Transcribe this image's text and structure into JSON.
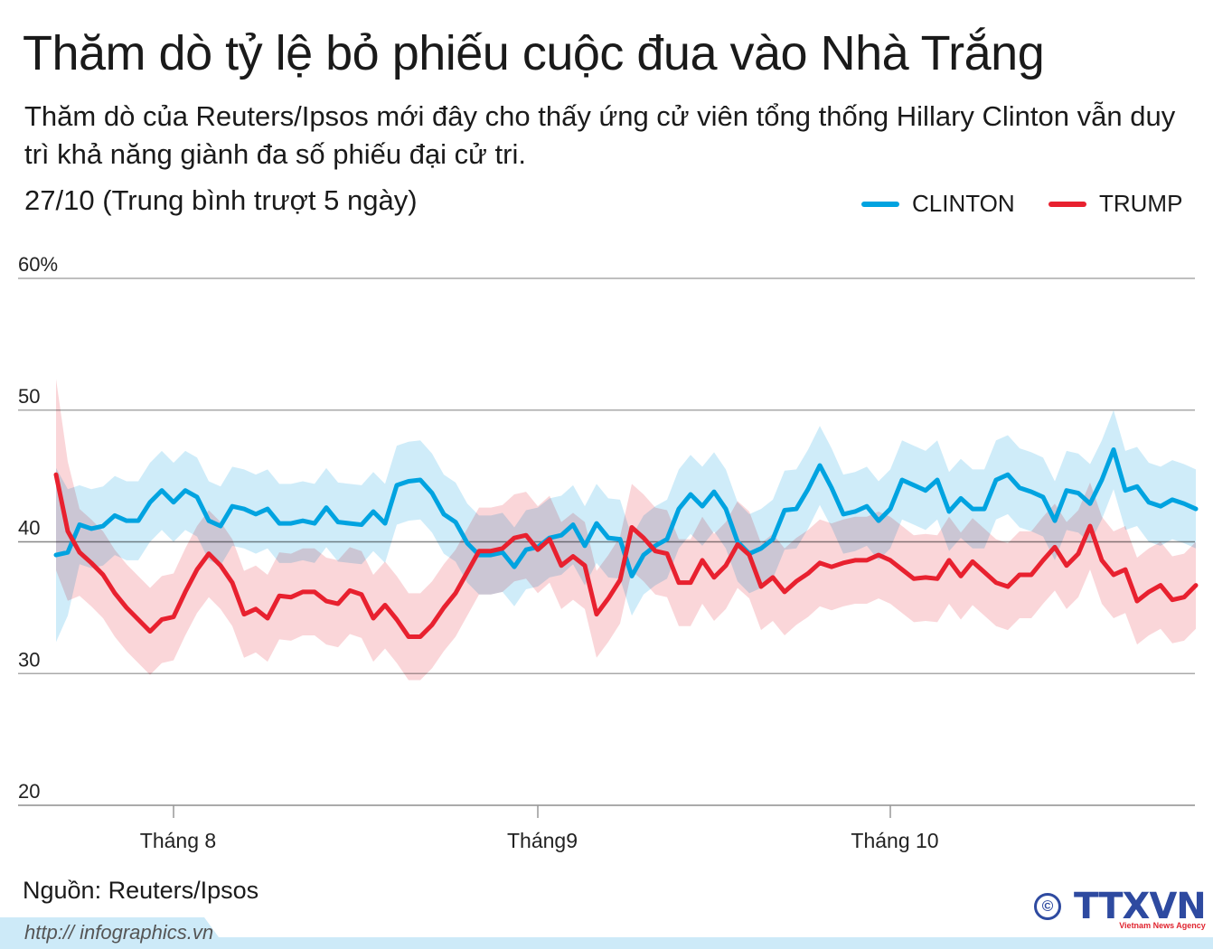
{
  "header": {
    "title": "Thăm dò tỷ lệ bỏ phiếu cuộc đua vào Nhà Trắng",
    "subtitle": "Thăm dò của Reuters/Ipsos mới đây cho thấy ứng cử viên tổng thống Hillary Clinton vẫn duy trì khả năng giành đa số phiếu đại cử tri.",
    "date_note": "27/10 (Trung bình trượt 5 ngày)"
  },
  "chart_data": {
    "type": "line",
    "title": "Thăm dò tỷ lệ bỏ phiếu cuộc đua vào Nhà Trắng",
    "xlabel": "",
    "ylabel": "",
    "ylim": [
      20,
      60
    ],
    "y_ticks": [
      {
        "value": 60,
        "label": "60%"
      },
      {
        "value": 50,
        "label": "50"
      },
      {
        "value": 40,
        "label": "40"
      },
      {
        "value": 30,
        "label": "30"
      },
      {
        "value": 20,
        "label": "20"
      }
    ],
    "x_ticks": [
      {
        "index": 10,
        "label": "Tháng 8"
      },
      {
        "index": 41,
        "label": "Tháng9"
      },
      {
        "index": 71,
        "label": "Tháng 10"
      }
    ],
    "grid": true,
    "legend_position": "top-right",
    "series": [
      {
        "name": "CLINTON",
        "color": "#00a3e0",
        "band_color": "#bfe6f7",
        "band_margin": 3.0,
        "values": [
          39.0,
          39.2,
          41.3,
          41.0,
          41.2,
          42.0,
          41.6,
          41.6,
          43.0,
          43.9,
          43.0,
          43.9,
          43.4,
          41.6,
          41.2,
          42.7,
          42.5,
          42.1,
          42.5,
          41.4,
          41.4,
          41.6,
          41.4,
          42.6,
          41.5,
          41.4,
          41.3,
          42.3,
          41.4,
          44.3,
          44.6,
          44.7,
          43.7,
          42.1,
          41.5,
          39.9,
          39.0,
          39.0,
          39.2,
          38.1,
          39.4,
          39.6,
          40.3,
          40.5,
          41.3,
          39.7,
          41.4,
          40.3,
          40.2,
          37.4,
          39.0,
          39.7,
          40.2,
          42.5,
          43.6,
          42.7,
          43.8,
          42.5,
          40.0,
          39.1,
          39.5,
          40.2,
          42.4,
          42.5,
          44.0,
          45.8,
          44.1,
          42.1,
          42.3,
          42.7,
          41.6,
          42.5,
          44.7,
          44.3,
          43.9,
          44.7,
          42.3,
          43.3,
          42.5,
          42.5,
          44.7,
          45.1,
          44.1,
          43.8,
          43.4,
          41.6,
          43.9,
          43.7,
          42.9,
          44.7,
          47.0,
          43.9,
          44.2,
          43.0,
          42.7,
          43.2,
          42.9,
          42.5
        ]
      },
      {
        "name": "TRUMP",
        "color": "#e8212f",
        "band_color": "#f8c9cd",
        "band_margin": 3.3,
        "values": [
          45.1,
          40.8,
          39.2,
          38.4,
          37.5,
          36.1,
          35.0,
          34.1,
          33.2,
          34.1,
          34.3,
          36.2,
          37.9,
          39.1,
          38.2,
          36.9,
          34.5,
          34.9,
          34.2,
          35.9,
          35.8,
          36.2,
          36.2,
          35.5,
          35.3,
          36.3,
          36.0,
          34.2,
          35.2,
          34.1,
          32.8,
          32.8,
          33.7,
          35.0,
          36.1,
          37.7,
          39.3,
          39.3,
          39.5,
          40.3,
          40.5,
          39.4,
          40.2,
          38.2,
          38.9,
          38.2,
          34.5,
          35.7,
          37.1,
          41.1,
          40.3,
          39.3,
          39.1,
          36.9,
          36.9,
          38.6,
          37.3,
          38.2,
          39.8,
          39.0,
          36.6,
          37.3,
          36.2,
          37.0,
          37.6,
          38.4,
          38.1,
          38.4,
          38.6,
          38.6,
          39.0,
          38.6,
          37.9,
          37.2,
          37.3,
          37.2,
          38.6,
          37.4,
          38.5,
          37.7,
          36.9,
          36.6,
          37.5,
          37.5,
          38.6,
          39.6,
          38.2,
          39.1,
          41.2,
          38.6,
          37.5,
          37.9,
          35.5,
          36.2,
          36.7,
          35.6,
          35.8,
          36.7
        ]
      }
    ]
  },
  "footer": {
    "source": "Nguồn: Reuters/Ipsos",
    "url": "http:// infographics.vn",
    "copyright": "©",
    "logo_text": "TTXVN",
    "logo_tagline": "Vietnam News Agency"
  },
  "colors": {
    "footer_band": "#cdeaf8",
    "grid": "#999999",
    "logo": "#2e4aa0"
  }
}
